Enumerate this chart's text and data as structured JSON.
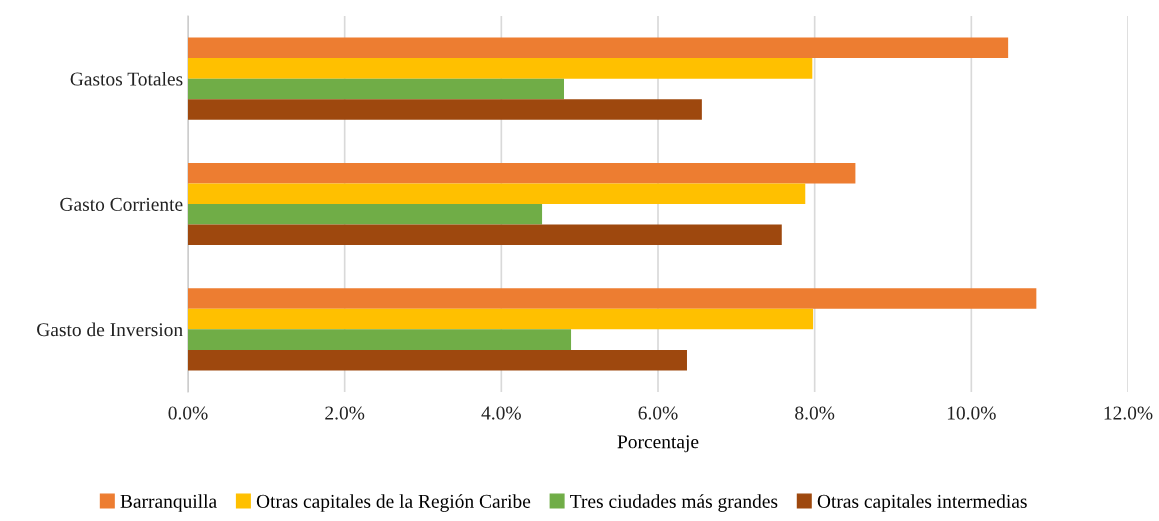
{
  "chart_data": {
    "type": "bar",
    "orientation": "horizontal",
    "xlabel": "Porcentaje",
    "categories": [
      "Gastos Totales",
      "Gasto Corriente",
      "Gasto de Inversion"
    ],
    "series": [
      {
        "name": "Barranquilla",
        "color": "#ed7d31",
        "values": [
          10.47,
          8.52,
          10.83
        ]
      },
      {
        "name": "Otras capitales de la Región Caribe",
        "color": "#ffc000",
        "values": [
          7.97,
          7.88,
          7.98
        ]
      },
      {
        "name": "Tres ciudades más grandes",
        "color": "#70ad47",
        "values": [
          4.8,
          4.52,
          4.89
        ]
      },
      {
        "name": "Otras capitales intermedias",
        "color": "#9e480e",
        "values": [
          6.56,
          7.58,
          6.37
        ]
      }
    ],
    "xlim": [
      0,
      12
    ],
    "xticks": [
      {
        "value": 0,
        "label": "0.0%"
      },
      {
        "value": 2,
        "label": "2.0%"
      },
      {
        "value": 4,
        "label": "4.0%"
      },
      {
        "value": 6,
        "label": "6.0%"
      },
      {
        "value": 8,
        "label": "8.0%"
      },
      {
        "value": 10,
        "label": "10.0%"
      },
      {
        "value": 12,
        "label": "12.0%"
      }
    ],
    "grid": "x",
    "legend": "bottom"
  }
}
